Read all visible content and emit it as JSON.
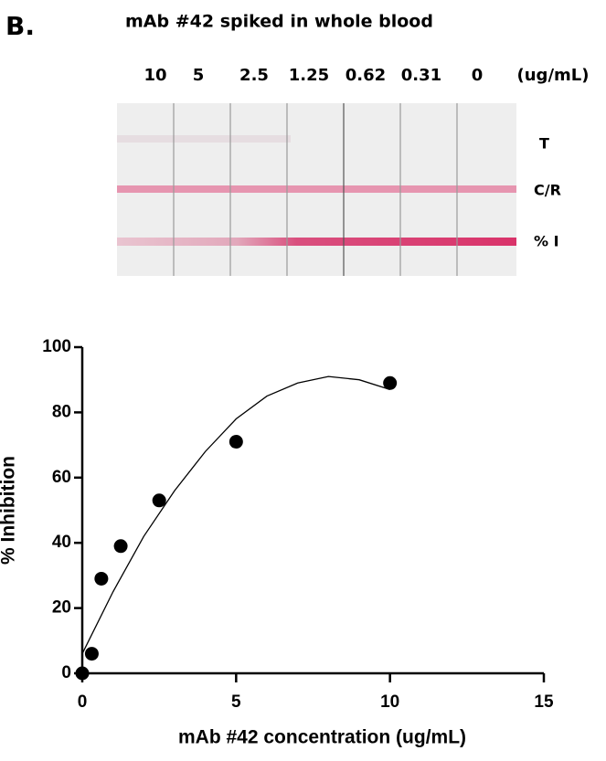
{
  "panel_label": "B.",
  "strip": {
    "title": "mAb #42 spiked in whole blood",
    "concentrations": [
      "10",
      "5",
      "2.5",
      "1.25",
      "0.62",
      "0.31",
      "0",
      "(ug/mL)"
    ],
    "band_labels": [
      "T",
      "C/R",
      "% I"
    ]
  },
  "chart_data": {
    "type": "scatter",
    "x": [
      0,
      0.31,
      0.62,
      1.25,
      2.5,
      5,
      10
    ],
    "values": [
      0,
      6,
      29,
      39,
      53,
      71,
      89
    ],
    "color": "#000000",
    "curve": {
      "x": [
        0,
        1,
        2,
        3,
        4,
        5,
        6,
        7,
        8,
        9,
        10
      ],
      "values": [
        6,
        25,
        42,
        56,
        68,
        78,
        85,
        89,
        91,
        90,
        87
      ]
    },
    "xlim": [
      0,
      15
    ],
    "ylim": [
      0,
      100
    ],
    "xticks": [
      0,
      5,
      10,
      15
    ],
    "yticks": [
      0,
      20,
      40,
      60,
      80,
      100
    ],
    "xlabel": "mAb #42 concentration (ug/mL)",
    "ylabel": "% Inhibition"
  }
}
